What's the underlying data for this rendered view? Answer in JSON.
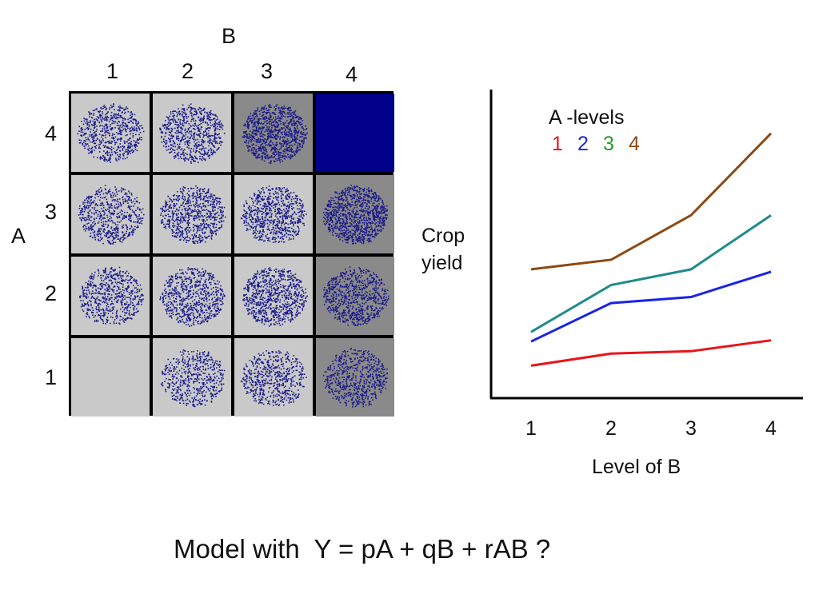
{
  "heatmap": {
    "col_axis_title": "B",
    "row_axis_title": "A",
    "col_labels": [
      "1",
      "2",
      "3",
      "4"
    ],
    "row_labels": [
      "4",
      "3",
      "2",
      "1"
    ],
    "cells": [
      [
        {
          "density": 0.45,
          "bg": "#c9c9c9"
        },
        {
          "density": 0.5,
          "bg": "#c9c9c9"
        },
        {
          "density": 0.8,
          "bg": "#8a8a8a"
        },
        {
          "density": 1.0,
          "bg": "#00008b"
        }
      ],
      [
        {
          "density": 0.4,
          "bg": "#c9c9c9"
        },
        {
          "density": 0.55,
          "bg": "#c9c9c9"
        },
        {
          "density": 0.55,
          "bg": "#c9c9c9"
        },
        {
          "density": 0.85,
          "bg": "#8a8a8a"
        }
      ],
      [
        {
          "density": 0.42,
          "bg": "#c9c9c9"
        },
        {
          "density": 0.5,
          "bg": "#c9c9c9"
        },
        {
          "density": 0.62,
          "bg": "#c9c9c9"
        },
        {
          "density": 0.55,
          "bg": "#8a8a8a"
        }
      ],
      [
        {
          "density": 0.0,
          "bg": "#c9c9c9"
        },
        {
          "density": 0.32,
          "bg": "#c9c9c9"
        },
        {
          "density": 0.38,
          "bg": "#c9c9c9"
        },
        {
          "density": 0.42,
          "bg": "#8a8a8a"
        }
      ]
    ],
    "dot_color": "#1a1a8c"
  },
  "chart_data": {
    "type": "line",
    "x": [
      1,
      2,
      3,
      4
    ],
    "xlabel": "Level of B",
    "ylabel_line1": "Crop",
    "ylabel_line2": "yield",
    "legend_title": "A -levels",
    "legend_position": "top-left",
    "xlim": [
      0.5,
      4.4
    ],
    "ylim": [
      0,
      100
    ],
    "series": [
      {
        "name": "1",
        "color": "#e8141c",
        "values": [
          13.5,
          18.5,
          19.5,
          24
        ]
      },
      {
        "name": "2",
        "color": "#1a24e6",
        "values": [
          23.5,
          39.5,
          42,
          52.5
        ]
      },
      {
        "name": "3",
        "color": "#2a9a2a",
        "line_color": "#1f8b8b",
        "values": [
          27.5,
          47,
          53.5,
          76
        ]
      },
      {
        "name": "4",
        "color": "#8b4a14",
        "values": [
          53.5,
          57.5,
          76,
          110
        ]
      }
    ],
    "ticks": [
      "1",
      "2",
      "3",
      "4"
    ]
  },
  "caption": "Model with  Y = pA + qB + rAB ?"
}
